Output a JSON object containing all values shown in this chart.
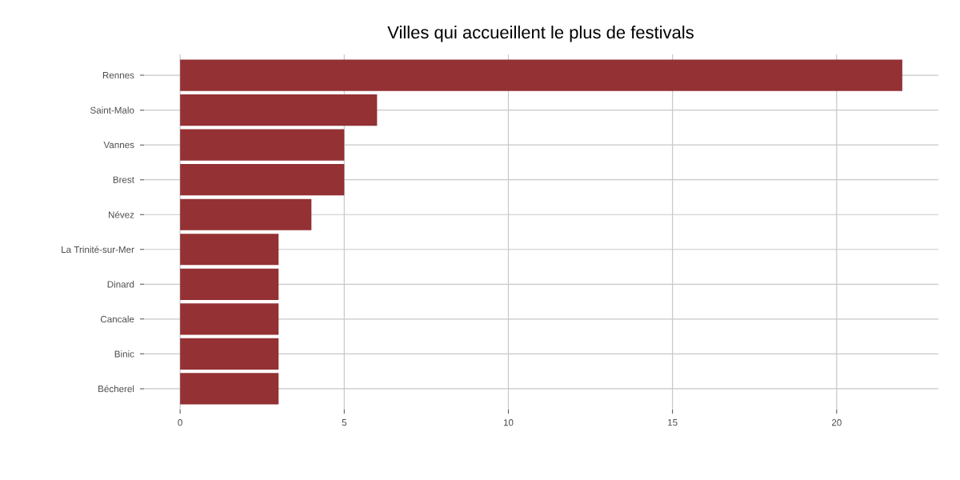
{
  "chart_data": {
    "type": "bar",
    "orientation": "horizontal",
    "title": "Villes qui accueillent le plus de festivals",
    "categories": [
      "Rennes",
      "Saint-Malo",
      "Vannes",
      "Brest",
      "Névez",
      "La Trinité-sur-Mer",
      "Dinard",
      "Cancale",
      "Binic",
      "Bécherel"
    ],
    "values": [
      22,
      6,
      5,
      5,
      4,
      3,
      3,
      3,
      3,
      3
    ],
    "color": "#943134",
    "xlim": [
      -1.1,
      23.1
    ],
    "xticks": [
      0,
      5,
      10,
      15,
      20
    ],
    "grid": true
  }
}
